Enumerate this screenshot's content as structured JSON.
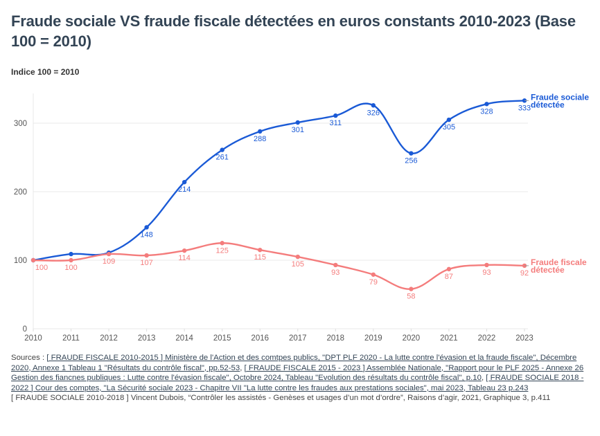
{
  "title": "Fraude sociale VS fraude fiscale détectées en euros constants 2010-2023 (Base 100 = 2010)",
  "subtitle": "Indice 100 = 2010",
  "colors": {
    "sociale": "#1a5ad6",
    "fiscale": "#f47c7c",
    "grid": "#e8e8e8",
    "title": "#334455"
  },
  "chart_data": {
    "type": "line",
    "title": "Fraude sociale VS fraude fiscale détectées en euros constants 2010-2023 (Base 100 = 2010)",
    "ylabel": "Indice 100 = 2010",
    "xlabel": "",
    "x": [
      2010,
      2011,
      2012,
      2013,
      2014,
      2015,
      2016,
      2017,
      2018,
      2019,
      2020,
      2021,
      2022,
      2023
    ],
    "x_tick_labels": [
      "2010",
      "2011",
      "2012",
      "2013",
      "2014",
      "2015",
      "2016",
      "2017",
      "2018",
      "2019",
      "2020",
      "2021",
      "2022",
      "2023"
    ],
    "y_ticks": [
      0,
      100,
      200,
      300
    ],
    "y_tick_labels": [
      "0",
      "100",
      "200",
      "300"
    ],
    "ylim": [
      0,
      340
    ],
    "grid": true,
    "legend": "right-end-labels",
    "series": [
      {
        "name": "Fraude sociale détectée",
        "legend_lines": [
          "Fraude sociale",
          "détectée"
        ],
        "color": "#1a5ad6",
        "values": [
          100,
          109,
          111,
          148,
          214,
          261,
          288,
          301,
          311,
          326,
          256,
          305,
          328,
          333
        ],
        "labels": [
          null,
          null,
          null,
          "148",
          "214",
          "261",
          "288",
          "301",
          "311",
          "326",
          "256",
          "305",
          "328",
          "333"
        ]
      },
      {
        "name": "Fraude fiscale détectée",
        "legend_lines": [
          "Fraude fiscale",
          "détectée"
        ],
        "color": "#f47c7c",
        "values": [
          100,
          100,
          109,
          107,
          114,
          125,
          115,
          105,
          93,
          79,
          58,
          87,
          93,
          92
        ],
        "labels": [
          "100",
          "100",
          "109",
          "107",
          "114",
          "125",
          "115",
          "105",
          "93",
          "79",
          "58",
          "87",
          "93",
          "92"
        ]
      }
    ]
  },
  "sources": {
    "prefix": "Sources : ",
    "part1": "[ FRAUDE FISCALE 2010-2015 ] Ministère de l'Action et des comtpes publics, \"DPT PLF 2020 - La lutte contre l'évasion et la fraude fiscale\", Décembre 2020, Annexe 1 Tableau 1 \"Résultats du contrôle fiscal\", pp.52-53",
    "sep1": ", ",
    "part2": "[ FRAUDE FISCALE 2015 - 2023 ] Assemblée Nationale, \"Rapport pour le PLF 2025 - Annexe 26 Gestion des fiancnes publiques : Lutte contre l'évasion fiscale\", Octobre 2024, Tableau \"Evolution des résultats du contrôle fiscal\", p.10",
    "sep2": ", ",
    "part3": "[ FRAUDE SOCIALE 2018 - 2022 ] Cour des comptes, \"La Sécurité sociale 2023 - Chapitre VII \"La lutte contre les fraudes aux prestations sociales\", mai 2023, Tableau 23 p.243",
    "line2": "[ FRAUDE SOCIALE 2010-2018 ] Vincent Dubois, “Contrôler les assistés - Genèses et usages d’un mot d’ordre”, Raisons d’agir, 2021, Graphique 3, p.411"
  }
}
